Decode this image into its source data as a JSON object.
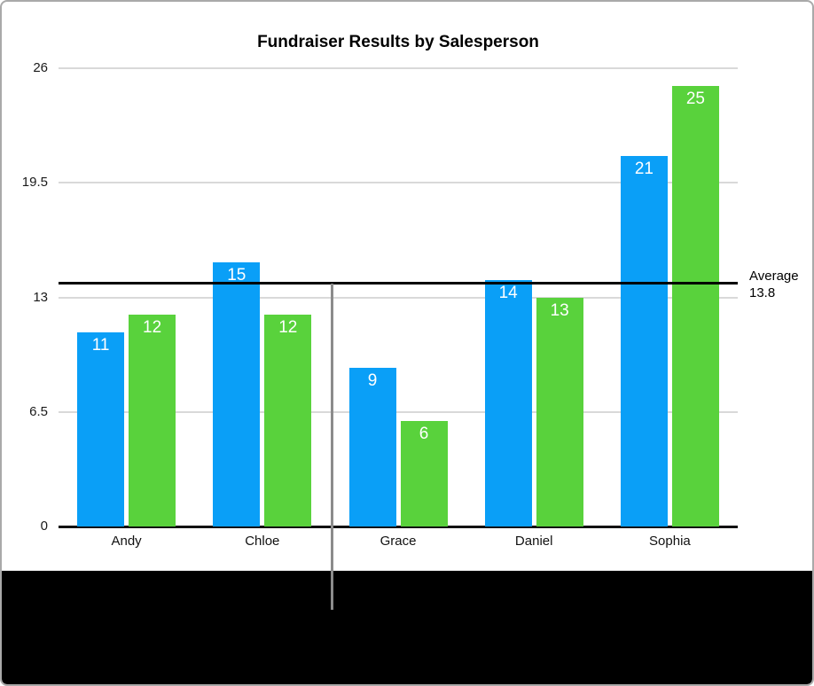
{
  "window": {
    "frame_border_color": "#a9a9a9",
    "background_color": "#ffffff",
    "footer_color": "#000000"
  },
  "chart_data": {
    "type": "bar",
    "title": "Fundraiser Results by Salesperson",
    "categories": [
      "Andy",
      "Chloe",
      "Grace",
      "Daniel",
      "Sophia"
    ],
    "series": [
      {
        "name": "blue-series",
        "color": "#0a9ff7",
        "values": [
          11,
          15,
          9,
          14,
          21
        ]
      },
      {
        "name": "green-series",
        "color": "#59d23c",
        "values": [
          12,
          12,
          6,
          13,
          25
        ]
      }
    ],
    "value_label_color": "#ffffff",
    "y_ticks": [
      {
        "value": 26,
        "label": "26"
      },
      {
        "value": 19.5,
        "label": "19.5"
      },
      {
        "value": 13,
        "label": "13"
      },
      {
        "value": 6.5,
        "label": "6.5"
      },
      {
        "value": 0,
        "label": "0"
      }
    ],
    "ylim": [
      0,
      26
    ],
    "grid": true,
    "gridline_color": "#d9d9d9",
    "axis_line_color": "#111111",
    "legend": "none",
    "average_line": {
      "value": 13.8,
      "color": "#000000",
      "label_lines": [
        "Average",
        "13.8"
      ]
    },
    "divider_line": {
      "between_categories": [
        "Chloe",
        "Grace"
      ],
      "from_value": 13.8,
      "extends_below_axis": true,
      "color": "#8c8c8c"
    }
  }
}
